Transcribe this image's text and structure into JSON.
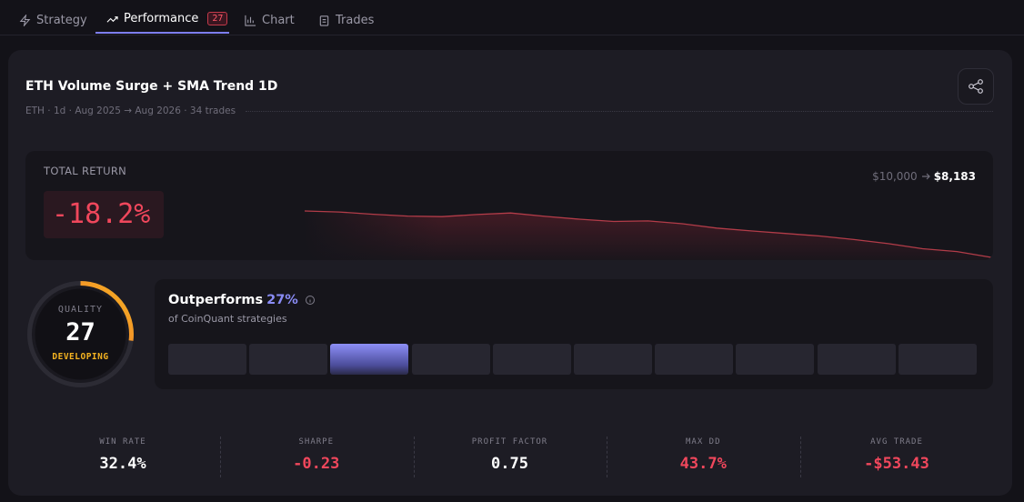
{
  "tabs": [
    {
      "label": "Strategy"
    },
    {
      "label": "Performance",
      "badge": "27",
      "active": true
    },
    {
      "label": "Chart"
    },
    {
      "label": "Trades"
    }
  ],
  "header": {
    "title": "ETH Volume Surge + SMA Trend 1D",
    "subtitle": "ETH · 1d · Aug 2025 → Aug 2026 · 34 trades"
  },
  "total_return": {
    "label": "TOTAL RETURN",
    "value": "-18.2%",
    "start": "$10,000",
    "end": "$8,183",
    "equity_curve": [
      10000,
      9960,
      9870,
      9800,
      9780,
      9860,
      9920,
      9790,
      9680,
      9590,
      9610,
      9500,
      9330,
      9220,
      9120,
      9020,
      8880,
      8720,
      8520,
      8410,
      8183
    ]
  },
  "quality": {
    "label": "QUALITY",
    "score": 27,
    "range": [
      0,
      100
    ],
    "rating": "DEVELOPING"
  },
  "outperforms": {
    "title": "Outperforms",
    "percentile": {
      "value": 27,
      "label": "27%"
    },
    "scale": [
      0,
      100
    ],
    "subtitle": "of CoinQuant strategies"
  },
  "stats": [
    {
      "label": "WIN RATE",
      "value": "32.4%",
      "color": "#ffffff"
    },
    {
      "label": "SHARPE",
      "value": "-0.23",
      "color": "#f0475c"
    },
    {
      "label": "PROFIT FACTOR",
      "value": "0.75",
      "color": "#ffffff"
    },
    {
      "label": "MAX DD",
      "value": "43.7%",
      "color": "#f0475c"
    },
    {
      "label": "AVG TRADE",
      "value": "-$53.43",
      "color": "#f0475c"
    }
  ]
}
